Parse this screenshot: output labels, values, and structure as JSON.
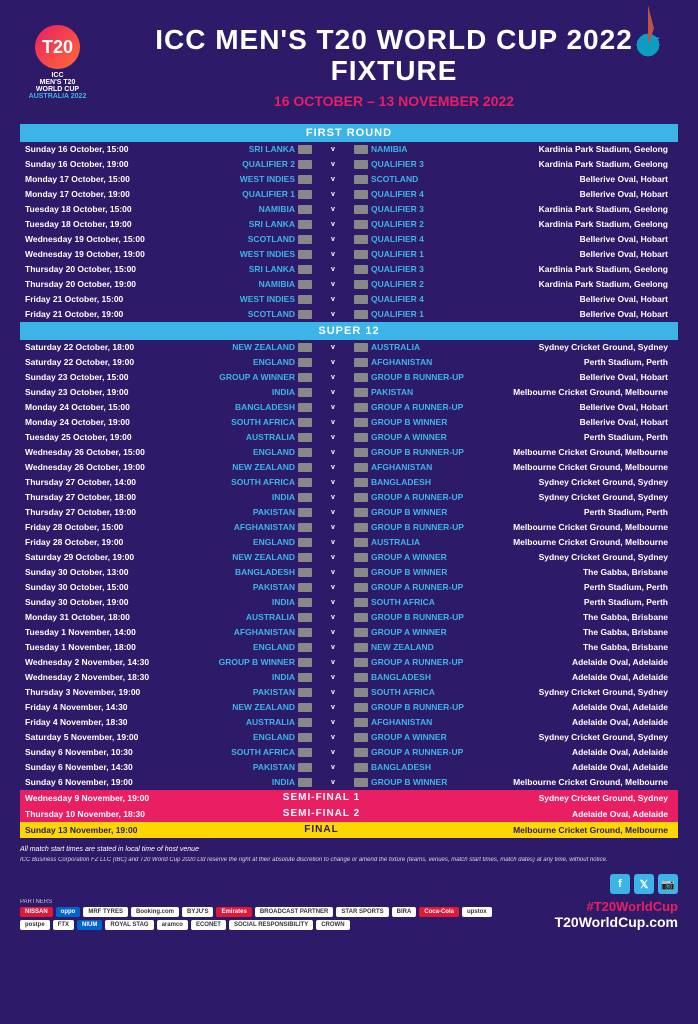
{
  "title": "ICC MEN'S T20 WORLD CUP 2022 FIXTURE",
  "dates": "16 OCTOBER – 13 NOVEMBER 2022",
  "logo": {
    "t20": "T20",
    "line1": "ICC",
    "line2": "MEN'S T20",
    "line3": "WORLD CUP",
    "line4": "AUSTRALIA 2022"
  },
  "sections": {
    "first": "FIRST ROUND",
    "super": "SUPER 12"
  },
  "firstRound": [
    {
      "d": "Sunday 16 October, 15:00",
      "t1": "SRI LANKA",
      "t2": "NAMIBIA",
      "v": "Kardinia Park Stadium, Geelong"
    },
    {
      "d": "Sunday 16 October, 19:00",
      "t1": "QUALIFIER 2",
      "t2": "QUALIFIER 3",
      "v": "Kardinia Park Stadium, Geelong"
    },
    {
      "d": "Monday 17 October, 15:00",
      "t1": "WEST INDIES",
      "t2": "SCOTLAND",
      "v": "Bellerive Oval, Hobart"
    },
    {
      "d": "Monday 17 October, 19:00",
      "t1": "QUALIFIER 1",
      "t2": "QUALIFIER 4",
      "v": "Bellerive Oval, Hobart"
    },
    {
      "d": "Tuesday 18 October, 15:00",
      "t1": "NAMIBIA",
      "t2": "QUALIFIER 3",
      "v": "Kardinia Park Stadium, Geelong"
    },
    {
      "d": "Tuesday 18 October, 19:00",
      "t1": "SRI LANKA",
      "t2": "QUALIFIER 2",
      "v": "Kardinia Park Stadium, Geelong"
    },
    {
      "d": "Wednesday 19 October, 15:00",
      "t1": "SCOTLAND",
      "t2": "QUALIFIER 4",
      "v": "Bellerive Oval, Hobart"
    },
    {
      "d": "Wednesday 19 October, 19:00",
      "t1": "WEST INDIES",
      "t2": "QUALIFIER 1",
      "v": "Bellerive Oval, Hobart"
    },
    {
      "d": "Thursday 20 October, 15:00",
      "t1": "SRI LANKA",
      "t2": "QUALIFIER 3",
      "v": "Kardinia Park Stadium, Geelong"
    },
    {
      "d": "Thursday 20 October, 19:00",
      "t1": "NAMIBIA",
      "t2": "QUALIFIER 2",
      "v": "Kardinia Park Stadium, Geelong"
    },
    {
      "d": "Friday 21 October, 15:00",
      "t1": "WEST INDIES",
      "t2": "QUALIFIER 4",
      "v": "Bellerive Oval, Hobart"
    },
    {
      "d": "Friday 21 October, 19:00",
      "t1": "SCOTLAND",
      "t2": "QUALIFIER 1",
      "v": "Bellerive Oval, Hobart"
    }
  ],
  "super12": [
    {
      "d": "Saturday 22 October, 18:00",
      "t1": "NEW ZEALAND",
      "t2": "AUSTRALIA",
      "v": "Sydney Cricket Ground, Sydney"
    },
    {
      "d": "Saturday 22 October, 19:00",
      "t1": "ENGLAND",
      "t2": "AFGHANISTAN",
      "v": "Perth Stadium, Perth"
    },
    {
      "d": "Sunday 23 October, 15:00",
      "t1": "GROUP A WINNER",
      "t2": "GROUP B RUNNER-UP",
      "v": "Bellerive Oval, Hobart"
    },
    {
      "d": "Sunday 23 October, 19:00",
      "t1": "INDIA",
      "t2": "PAKISTAN",
      "v": "Melbourne Cricket Ground, Melbourne"
    },
    {
      "d": "Monday 24 October, 15:00",
      "t1": "BANGLADESH",
      "t2": "GROUP A RUNNER-UP",
      "v": "Bellerive Oval, Hobart"
    },
    {
      "d": "Monday 24 October, 19:00",
      "t1": "SOUTH AFRICA",
      "t2": "GROUP B WINNER",
      "v": "Bellerive Oval, Hobart"
    },
    {
      "d": "Tuesday 25 October, 19:00",
      "t1": "AUSTRALIA",
      "t2": "GROUP A WINNER",
      "v": "Perth Stadium, Perth"
    },
    {
      "d": "Wednesday 26 October, 15:00",
      "t1": "ENGLAND",
      "t2": "GROUP B RUNNER-UP",
      "v": "Melbourne Cricket Ground, Melbourne"
    },
    {
      "d": "Wednesday 26 October, 19:00",
      "t1": "NEW ZEALAND",
      "t2": "AFGHANISTAN",
      "v": "Melbourne Cricket Ground, Melbourne"
    },
    {
      "d": "Thursday 27 October, 14:00",
      "t1": "SOUTH AFRICA",
      "t2": "BANGLADESH",
      "v": "Sydney Cricket Ground, Sydney"
    },
    {
      "d": "Thursday 27 October, 18:00",
      "t1": "INDIA",
      "t2": "GROUP A RUNNER-UP",
      "v": "Sydney Cricket Ground, Sydney"
    },
    {
      "d": "Thursday 27 October, 19:00",
      "t1": "PAKISTAN",
      "t2": "GROUP B WINNER",
      "v": "Perth Stadium, Perth"
    },
    {
      "d": "Friday 28 October, 15:00",
      "t1": "AFGHANISTAN",
      "t2": "GROUP B RUNNER-UP",
      "v": "Melbourne Cricket Ground, Melbourne"
    },
    {
      "d": "Friday 28 October, 19:00",
      "t1": "ENGLAND",
      "t2": "AUSTRALIA",
      "v": "Melbourne Cricket Ground, Melbourne"
    },
    {
      "d": "Saturday 29 October, 19:00",
      "t1": "NEW ZEALAND",
      "t2": "GROUP A WINNER",
      "v": "Sydney Cricket Ground, Sydney"
    },
    {
      "d": "Sunday 30 October, 13:00",
      "t1": "BANGLADESH",
      "t2": "GROUP B WINNER",
      "v": "The Gabba, Brisbane"
    },
    {
      "d": "Sunday 30 October, 15:00",
      "t1": "PAKISTAN",
      "t2": "GROUP A RUNNER-UP",
      "v": "Perth Stadium, Perth"
    },
    {
      "d": "Sunday 30 October, 19:00",
      "t1": "INDIA",
      "t2": "SOUTH AFRICA",
      "v": "Perth Stadium, Perth"
    },
    {
      "d": "Monday 31 October, 18:00",
      "t1": "AUSTRALIA",
      "t2": "GROUP B RUNNER-UP",
      "v": "The Gabba, Brisbane"
    },
    {
      "d": "Tuesday 1 November, 14:00",
      "t1": "AFGHANISTAN",
      "t2": "GROUP A WINNER",
      "v": "The Gabba, Brisbane"
    },
    {
      "d": "Tuesday 1 November, 18:00",
      "t1": "ENGLAND",
      "t2": "NEW ZEALAND",
      "v": "The Gabba, Brisbane"
    },
    {
      "d": "Wednesday 2 November, 14:30",
      "t1": "GROUP B WINNER",
      "t2": "GROUP A RUNNER-UP",
      "v": "Adelaide Oval, Adelaide"
    },
    {
      "d": "Wednesday 2 November, 18:30",
      "t1": "INDIA",
      "t2": "BANGLADESH",
      "v": "Adelaide Oval, Adelaide"
    },
    {
      "d": "Thursday 3 November, 19:00",
      "t1": "PAKISTAN",
      "t2": "SOUTH AFRICA",
      "v": "Sydney Cricket Ground, Sydney"
    },
    {
      "d": "Friday 4 November, 14:30",
      "t1": "NEW ZEALAND",
      "t2": "GROUP B RUNNER-UP",
      "v": "Adelaide Oval, Adelaide"
    },
    {
      "d": "Friday 4 November, 18:30",
      "t1": "AUSTRALIA",
      "t2": "AFGHANISTAN",
      "v": "Adelaide Oval, Adelaide"
    },
    {
      "d": "Saturday 5 November, 19:00",
      "t1": "ENGLAND",
      "t2": "GROUP A WINNER",
      "v": "Sydney Cricket Ground, Sydney"
    },
    {
      "d": "Sunday 6 November, 10:30",
      "t1": "SOUTH AFRICA",
      "t2": "GROUP A RUNNER-UP",
      "v": "Adelaide Oval, Adelaide"
    },
    {
      "d": "Sunday 6 November, 14:30",
      "t1": "PAKISTAN",
      "t2": "BANGLADESH",
      "v": "Adelaide Oval, Adelaide"
    },
    {
      "d": "Sunday 6 November, 19:00",
      "t1": "INDIA",
      "t2": "GROUP B WINNER",
      "v": "Melbourne Cricket Ground, Melbourne"
    }
  ],
  "knockouts": [
    {
      "d": "Wednesday 9 November, 19:00",
      "label": "SEMI-FINAL 1",
      "v": "Sydney Cricket Ground, Sydney",
      "cls": "semi"
    },
    {
      "d": "Thursday 10 November, 18:30",
      "label": "SEMI-FINAL 2",
      "v": "Adelaide Oval, Adelaide",
      "cls": "semi"
    },
    {
      "d": "Sunday 13 November, 19:00",
      "label": "FINAL",
      "v": "Melbourne Cricket Ground, Melbourne",
      "cls": "final"
    }
  ],
  "note": "All match start times are stated in local time of host venue",
  "disclaimer": "ICC Business Corporation FZ LLC (IBC) and T20 World Cup 2020 Ltd reserve the right at their absolute discretion to change or amend the fixture (teams, venues, match start times, match dates) at any time, without notice.",
  "partnerLabel": "PARTNERS",
  "partners": [
    "NISSAN",
    "oppo",
    "MRF TYRES",
    "Booking.com",
    "BYJU'S",
    "Emirates",
    "BROADCAST PARTNER",
    "STAR SPORTS",
    "BIRA",
    "Coca-Cola",
    "upstox",
    "postpe",
    "FTX",
    "NIUM",
    "ROYAL STAG",
    "aramco",
    "ECONET",
    "SOCIAL RESPONSIBILITY",
    "CROWN"
  ],
  "hashtag": "#T20WorldCup",
  "url": "T20WorldCup.com",
  "social": [
    "f",
    "𝕏",
    "📷"
  ]
}
